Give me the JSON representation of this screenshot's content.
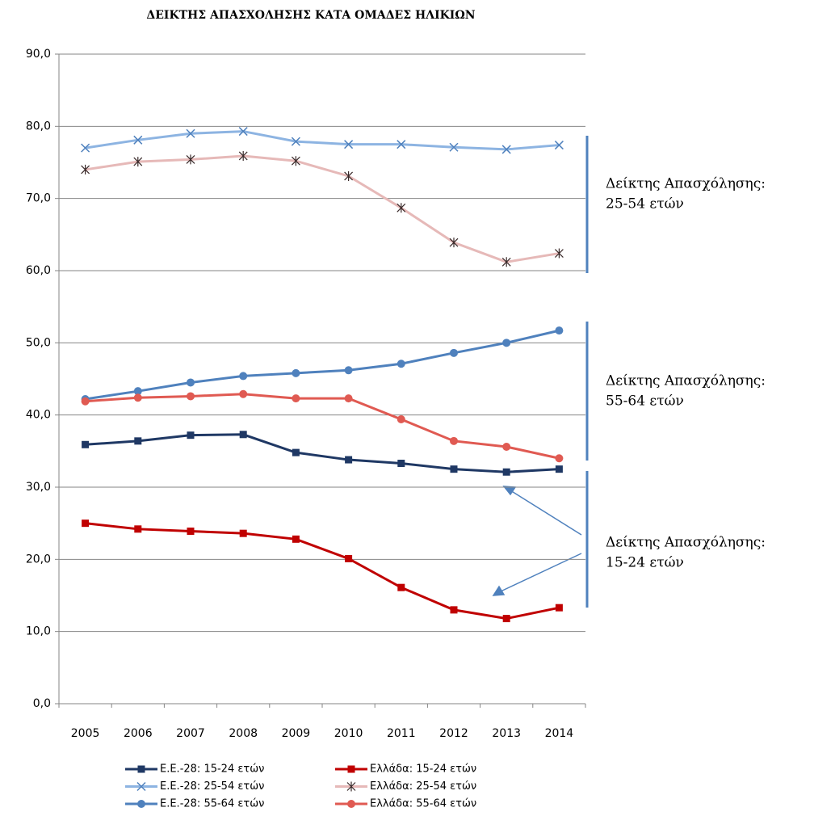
{
  "chart_data": {
    "type": "line",
    "title": "ΔΕΙΚΤΗΣ ΑΠΑΣΧΟΛΗΣΗΣ ΚΑΤΑ ΟΜΑΔΕΣ ΗΛΙΚΙΩΝ",
    "categories": [
      "2005",
      "2006",
      "2007",
      "2008",
      "2009",
      "2010",
      "2011",
      "2012",
      "2013",
      "2014"
    ],
    "series": [
      {
        "name": "Ε.Ε.-28: 15-24 ετών",
        "color": "#1f3864",
        "marker": "square",
        "values": [
          35.9,
          36.4,
          37.2,
          37.3,
          34.8,
          33.8,
          33.3,
          32.5,
          32.1,
          32.5
        ]
      },
      {
        "name": "Ελλάδα: 15-24 ετών",
        "color": "#c00000",
        "marker": "square",
        "values": [
          25.0,
          24.2,
          23.9,
          23.6,
          22.8,
          20.1,
          16.1,
          13.0,
          11.8,
          13.3
        ]
      },
      {
        "name": "Ε.Ε.-28: 25-54 ετών",
        "color": "#8db4e2",
        "marker": "x",
        "values": [
          77.0,
          78.1,
          79.0,
          79.3,
          77.9,
          77.5,
          77.5,
          77.1,
          76.8,
          77.4
        ]
      },
      {
        "name": "Ελλάδα: 25-54 ετών",
        "color": "#e6b9b8",
        "marker": "asterisk",
        "values": [
          74.0,
          75.1,
          75.4,
          75.9,
          75.2,
          73.1,
          68.7,
          63.9,
          61.2,
          62.4
        ]
      },
      {
        "name": "Ε.Ε.-28: 55-64 ετών",
        "color": "#4f81bd",
        "marker": "circle",
        "values": [
          42.2,
          43.3,
          44.5,
          45.4,
          45.8,
          46.2,
          47.1,
          48.6,
          50.0,
          51.7
        ]
      },
      {
        "name": "Ελλάδα: 55-64 ετών",
        "color": "#e05a52",
        "marker": "circle",
        "values": [
          41.9,
          42.4,
          42.6,
          42.9,
          42.3,
          42.3,
          39.4,
          36.4,
          35.6,
          34.0
        ]
      }
    ],
    "ylim": [
      0,
      90
    ],
    "yticks": [
      {
        "value": 0,
        "label": "0,0"
      },
      {
        "value": 10,
        "label": "10,0"
      },
      {
        "value": 20,
        "label": "20,0"
      },
      {
        "value": 30,
        "label": "30,0"
      },
      {
        "value": 40,
        "label": "40,0"
      },
      {
        "value": 50,
        "label": "50,0"
      },
      {
        "value": 60,
        "label": "60,0"
      },
      {
        "value": 70,
        "label": "70,0"
      },
      {
        "value": 80,
        "label": "80,0"
      },
      {
        "value": 90,
        "label": "90,0"
      }
    ],
    "grid": true,
    "legend": "bottom",
    "annotations": [
      {
        "text": [
          "Δείκτης Απασχόλησης:",
          "25-54 ετών"
        ]
      },
      {
        "text": [
          "Δείκτης Απασχόλησης:",
          "55-64 ετών"
        ]
      },
      {
        "text": [
          "Δείκτης Απασχόλησης:",
          "15-24 ετών"
        ]
      }
    ]
  }
}
